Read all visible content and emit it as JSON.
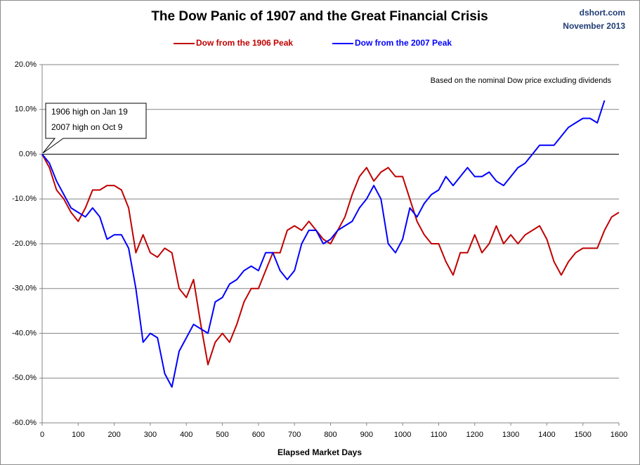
{
  "chart_data": {
    "type": "line",
    "title": "The Dow Panic of 1907 and the Great Financial Crisis",
    "source": "dshort.com",
    "date": "November 2013",
    "note": "Based on the nominal Dow price excluding dividends",
    "callout": [
      "1906  high on Jan 19",
      "2007 high on Oct 9"
    ],
    "x_label": "Elapsed Market Days",
    "x": [
      0,
      20,
      40,
      60,
      80,
      100,
      120,
      140,
      160,
      180,
      200,
      220,
      240,
      260,
      280,
      300,
      320,
      340,
      360,
      380,
      400,
      420,
      440,
      460,
      480,
      500,
      520,
      540,
      560,
      580,
      600,
      620,
      640,
      660,
      680,
      700,
      720,
      740,
      760,
      780,
      800,
      820,
      840,
      860,
      880,
      900,
      920,
      940,
      960,
      980,
      1000,
      1020,
      1040,
      1060,
      1080,
      1100,
      1120,
      1140,
      1160,
      1180,
      1200,
      1220,
      1240,
      1260,
      1280,
      1300,
      1320,
      1340,
      1360,
      1380,
      1400,
      1420,
      1440,
      1460,
      1480,
      1500,
      1520,
      1540,
      1560,
      1580,
      1600
    ],
    "series": [
      {
        "name": "Dow from the 1906 Peak",
        "color": "#c00000",
        "values": [
          0,
          -3,
          -8,
          -10,
          -13,
          -15,
          -12,
          -8,
          -8,
          -7,
          -7,
          -8,
          -12,
          -22,
          -18,
          -22,
          -23,
          -21,
          -22,
          -30,
          -32,
          -28,
          -38,
          -47,
          -42,
          -40,
          -42,
          -38,
          -33,
          -30,
          -30,
          -26,
          -22,
          -22,
          -17,
          -16,
          -17,
          -15,
          -17,
          -19,
          -20,
          -17,
          -14,
          -9,
          -5,
          -3,
          -6,
          -4,
          -3,
          -5,
          -5,
          -10,
          -15,
          -18,
          -20,
          -20,
          -24,
          -27,
          -22,
          -22,
          -18,
          -22,
          -20,
          -16,
          -20,
          -18,
          -20,
          -18,
          -17,
          -16,
          -19,
          -24,
          -27,
          -24,
          -22,
          -21,
          -21,
          -21,
          -17,
          -14,
          -13
        ]
      },
      {
        "name": "Dow from the 2007 Peak",
        "color": "#0000ff",
        "values": [
          0,
          -2,
          -6,
          -9,
          -12,
          -13,
          -14,
          -12,
          -14,
          -19,
          -18,
          -18,
          -21,
          -30,
          -42,
          -40,
          -41,
          -49,
          -52,
          -44,
          -41,
          -38,
          -39,
          -40,
          -33,
          -32,
          -29,
          -28,
          -26,
          -25,
          -26,
          -22,
          -22,
          -26,
          -28,
          -26,
          -20,
          -17,
          -17,
          -20,
          -19,
          -17,
          -16,
          -15,
          -12,
          -10,
          -7,
          -10,
          -20,
          -22,
          -19,
          -12,
          -14,
          -11,
          -9,
          -8,
          -5,
          -7,
          -5,
          -3,
          -5,
          -5,
          -4,
          -6,
          -7,
          -5,
          -3,
          -2,
          0,
          2,
          2,
          2,
          4,
          6,
          7,
          8,
          8,
          7,
          12,
          null,
          null
        ]
      }
    ],
    "xlim": [
      0,
      1600
    ],
    "xticks": [
      0,
      100,
      200,
      300,
      400,
      500,
      600,
      700,
      800,
      900,
      1000,
      1100,
      1200,
      1300,
      1400,
      1500,
      1600
    ],
    "ylim": [
      -60,
      20
    ],
    "yticks": [
      {
        "value": -60,
        "label": "-60.0%"
      },
      {
        "value": -50,
        "label": "-50.0%"
      },
      {
        "value": -40,
        "label": "-40.0%"
      },
      {
        "value": -30,
        "label": "-30.0%"
      },
      {
        "value": -20,
        "label": "-20.0%"
      },
      {
        "value": -10,
        "label": "-10.0%"
      },
      {
        "value": 0,
        "label": "0.0%"
      },
      {
        "value": 10,
        "label": "10.0%"
      },
      {
        "value": 20,
        "label": "20.0%"
      }
    ],
    "grid": true
  }
}
